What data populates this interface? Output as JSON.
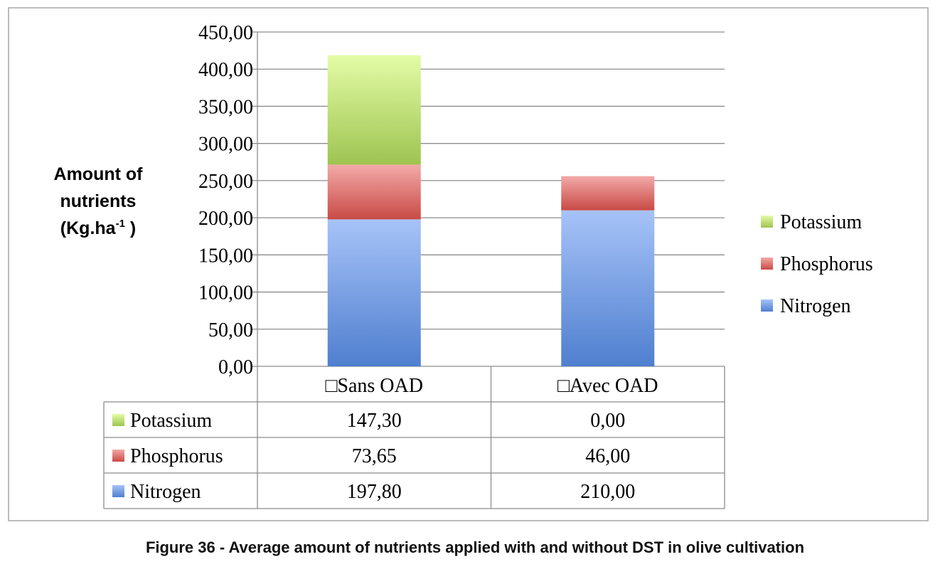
{
  "caption": "Figure 36 - Average amount of nutrients applied with and without DST in olive cultivation",
  "chart_data": {
    "type": "bar",
    "stacked": true,
    "ylabel_lines": [
      "Amount of",
      "nutrients"
    ],
    "ylabel_unit_base": "(Kg.ha",
    "ylabel_unit_sup": "-1",
    "ylabel_unit_end": " )",
    "ylim": [
      0,
      450
    ],
    "y_ticks": [
      "0,00",
      "50,00",
      "100,00",
      "150,00",
      "200,00",
      "250,00",
      "300,00",
      "350,00",
      "400,00",
      "450,00"
    ],
    "grid": true,
    "legend_position": "right",
    "categories": [
      "□Sans OAD",
      "□Avec OAD"
    ],
    "series": [
      {
        "name": "Nitrogen",
        "values": [
          197.8,
          210.0
        ],
        "labels": [
          "197,80",
          "210,00"
        ],
        "color_light": "#a7c3f8",
        "color_dark": "#4f7fcf"
      },
      {
        "name": "Phosphorus",
        "values": [
          73.65,
          46.0
        ],
        "labels": [
          "73,65",
          "46,00"
        ],
        "color_light": "#f2aaa8",
        "color_dark": "#c94a45"
      },
      {
        "name": "Potassium",
        "values": [
          147.3,
          0.0
        ],
        "labels": [
          "147,30",
          "0,00"
        ],
        "color_light": "#e3fca6",
        "color_dark": "#9ec451"
      }
    ]
  }
}
